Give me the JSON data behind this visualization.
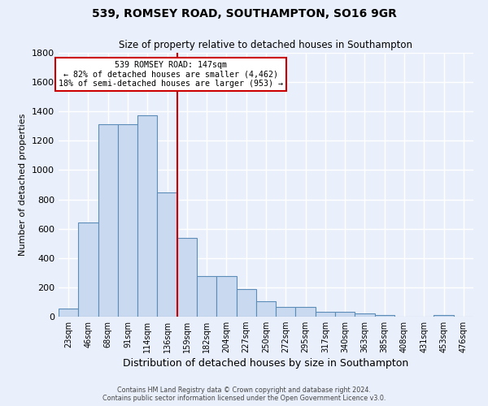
{
  "title_line1": "539, ROMSEY ROAD, SOUTHAMPTON, SO16 9GR",
  "title_line2": "Size of property relative to detached houses in Southampton",
  "xlabel": "Distribution of detached houses by size in Southampton",
  "ylabel": "Number of detached properties",
  "bar_labels": [
    "23sqm",
    "46sqm",
    "68sqm",
    "91sqm",
    "114sqm",
    "136sqm",
    "159sqm",
    "182sqm",
    "204sqm",
    "227sqm",
    "250sqm",
    "272sqm",
    "295sqm",
    "317sqm",
    "340sqm",
    "363sqm",
    "385sqm",
    "408sqm",
    "431sqm",
    "453sqm",
    "476sqm"
  ],
  "bar_values": [
    55,
    645,
    1310,
    1310,
    1375,
    845,
    535,
    275,
    275,
    190,
    105,
    65,
    65,
    35,
    35,
    20,
    10,
    0,
    0,
    10,
    0
  ],
  "bar_color": "#c8d9f0",
  "bar_edge_color": "#5b8db8",
  "annotation_line1": "539 ROMSEY ROAD: 147sqm",
  "annotation_line2": "← 82% of detached houses are smaller (4,462)",
  "annotation_line3": "18% of semi-detached houses are larger (953) →",
  "vline_x_index": 5.52,
  "vline_color": "#cc0000",
  "ylim": [
    0,
    1800
  ],
  "yticks": [
    0,
    200,
    400,
    600,
    800,
    1000,
    1200,
    1400,
    1600,
    1800
  ],
  "annotation_box_color": "#ffffff",
  "annotation_box_edge": "#cc0000",
  "footnote_line1": "Contains HM Land Registry data © Crown copyright and database right 2024.",
  "footnote_line2": "Contains public sector information licensed under the Open Government Licence v3.0.",
  "bg_color": "#eaf0fb",
  "grid_color": "#ffffff"
}
